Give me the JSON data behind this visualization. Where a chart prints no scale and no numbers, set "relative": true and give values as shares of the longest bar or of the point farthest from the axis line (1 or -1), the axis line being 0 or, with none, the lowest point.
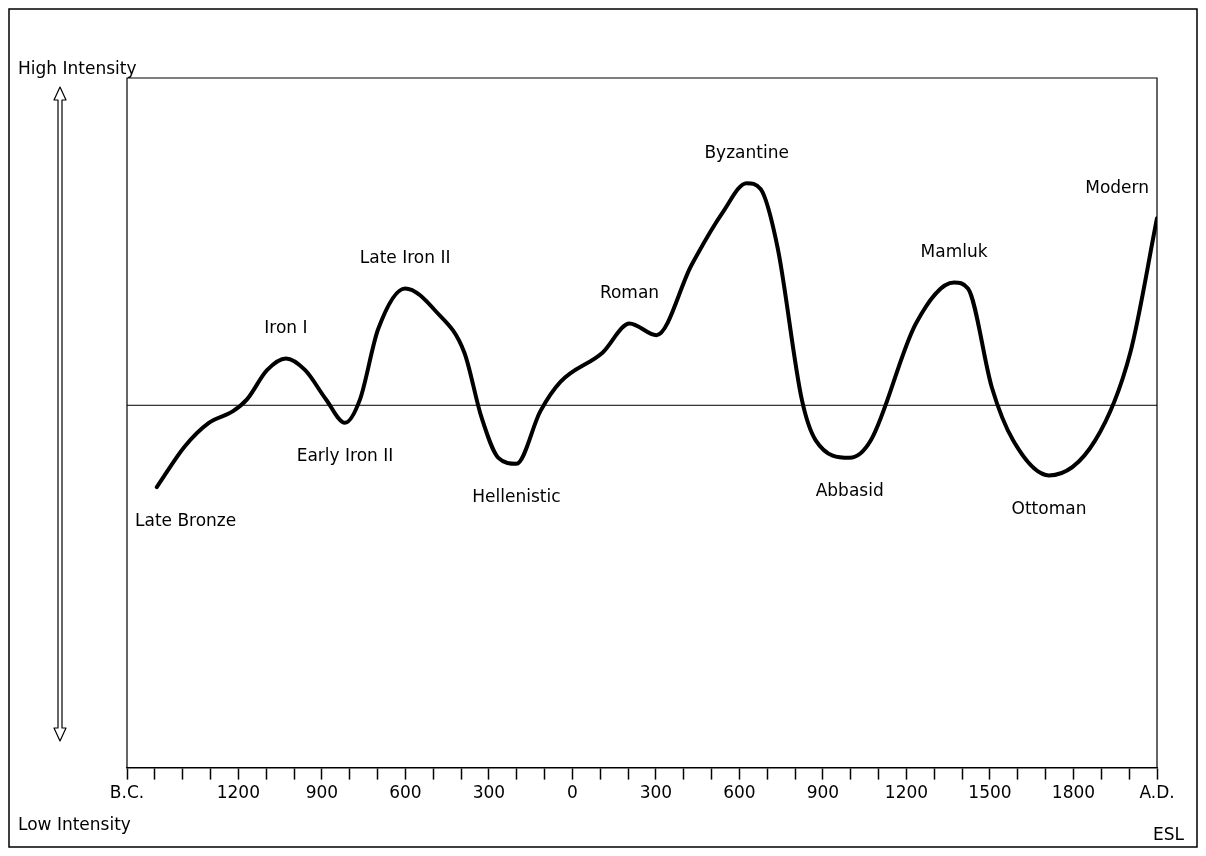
{
  "chart_data": {
    "type": "line",
    "relative": true,
    "color": "#000000",
    "marker": "none",
    "grid": false,
    "legend": false,
    "x": [
      -1493,
      -1392,
      -1306,
      -1219,
      -1169,
      -1097,
      -1029,
      -960,
      -885,
      -817,
      -763,
      -698,
      -601,
      -489,
      -388,
      -327,
      -266,
      -201,
      -115,
      -43,
      108,
      205,
      302,
      428,
      540,
      626,
      676,
      737,
      824,
      874,
      996,
      1072,
      1234,
      1371,
      1421,
      1507,
      1583,
      1712,
      1878,
      2004,
      2100
    ],
    "values": [
      0.48,
      0.55,
      0.59,
      0.61,
      0.63,
      0.68,
      0.7,
      0.68,
      0.63,
      0.59,
      0.63,
      0.75,
      0.82,
      0.78,
      0.71,
      0.6,
      0.53,
      0.52,
      0.61,
      0.66,
      0.71,
      0.76,
      0.74,
      0.86,
      0.95,
      1,
      0.99,
      0.89,
      0.63,
      0.56,
      0.53,
      0.56,
      0.76,
      0.83,
      0.82,
      0.65,
      0.56,
      0.5,
      0.56,
      0.71,
      0.94
    ],
    "xlim": [
      -1600,
      2100
    ],
    "xticks": [
      {
        "value": -1600,
        "label": "B.C."
      },
      {
        "value": -1500,
        "label": null
      },
      {
        "value": -1400,
        "label": null
      },
      {
        "value": -1300,
        "label": null
      },
      {
        "value": -1200,
        "label": "1200"
      },
      {
        "value": -1100,
        "label": null
      },
      {
        "value": -1000,
        "label": null
      },
      {
        "value": -900,
        "label": "900"
      },
      {
        "value": -800,
        "label": null
      },
      {
        "value": -700,
        "label": null
      },
      {
        "value": -600,
        "label": "600"
      },
      {
        "value": -500,
        "label": null
      },
      {
        "value": -400,
        "label": null
      },
      {
        "value": -300,
        "label": "300"
      },
      {
        "value": -200,
        "label": null
      },
      {
        "value": -100,
        "label": null
      },
      0,
      {
        "value": 100,
        "label": null
      },
      {
        "value": 200,
        "label": null
      },
      300,
      {
        "value": 400,
        "label": null
      },
      {
        "value": 500,
        "label": null
      },
      600,
      {
        "value": 700,
        "label": null
      },
      {
        "value": 800,
        "label": null
      },
      900,
      {
        "value": 1000,
        "label": null
      },
      {
        "value": 1100,
        "label": null
      },
      1200,
      {
        "value": 1300,
        "label": null
      },
      {
        "value": 1400,
        "label": null
      },
      1500,
      {
        "value": 1600,
        "label": null
      },
      {
        "value": 1700,
        "label": null
      },
      1800,
      {
        "value": 1900,
        "label": null
      },
      {
        "value": 2000,
        "label": null
      },
      {
        "value": 2100,
        "label": "A.D."
      }
    ],
    "ref_lines": [
      {
        "axis": "y",
        "value": 0.62
      }
    ],
    "annotations": [
      "High Intensity",
      "Low Intensity",
      "ESL",
      {
        "text": "Late Bronze",
        "x": -1493,
        "y": 0.48
      },
      {
        "text": "Iron I",
        "x": -1029,
        "y": 0.7
      },
      {
        "text": "Early Iron II",
        "x": -817,
        "y": 0.59
      },
      {
        "text": "Late Iron II",
        "x": -601,
        "y": 0.82
      },
      {
        "text": "Hellenistic",
        "x": -201,
        "y": 0.52
      },
      {
        "text": "Roman",
        "x": 205,
        "y": 0.76
      },
      {
        "text": "Byzantine",
        "x": 626,
        "y": 1
      },
      {
        "text": "Abbasid",
        "x": 996,
        "y": 0.53
      },
      {
        "text": "Mamluk",
        "x": 1371,
        "y": 0.83
      },
      {
        "text": "Ottoman",
        "x": 1712,
        "y": 0.5
      },
      {
        "text": "Modern",
        "x": 2100,
        "y": 0.94
      }
    ]
  }
}
